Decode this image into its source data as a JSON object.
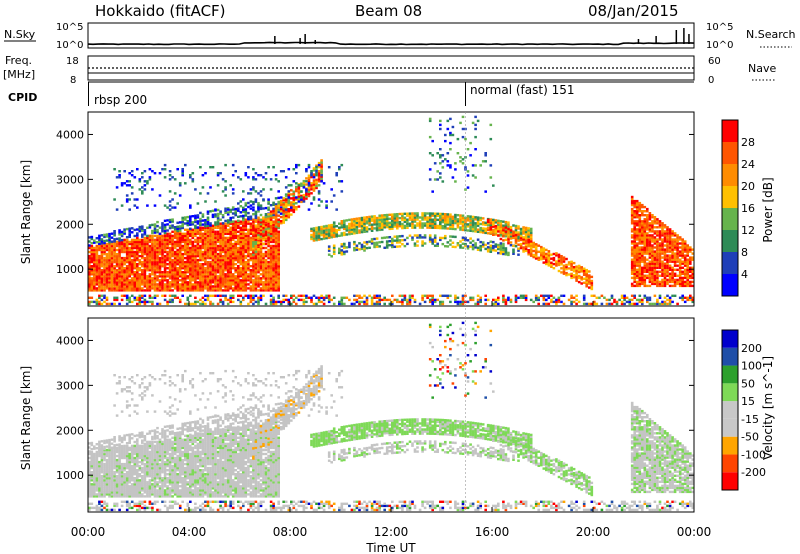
{
  "header": {
    "station": "Hokkaido (fitACF)",
    "beam": "Beam 08",
    "date": "08/Jan/2015"
  },
  "side_labels": {
    "nsky": "N.Sky",
    "freq_line1": "Freq.",
    "freq_line2": "[MHz]",
    "cpid": "CPID",
    "nsearch": "N.Search",
    "nave": "Nave"
  },
  "noise_panel": {
    "left_ticks": [
      "10^5",
      "10^0"
    ],
    "right_ticks": [
      "10^5",
      "10^0"
    ]
  },
  "freq_panel": {
    "left_ticks": [
      "18",
      "8"
    ],
    "right_ticks": [
      "60",
      "0"
    ]
  },
  "cpid_panel": {
    "segments": [
      {
        "label": "rbsp 200",
        "start_hour": 0
      },
      {
        "label": "normal (fast) 151",
        "start_hour": 15.1
      }
    ]
  },
  "colors": {
    "power_scale": [
      "#0000ff",
      "#1f3fb8",
      "#2e8b57",
      "#66b34d",
      "#ffc000",
      "#ff8c00",
      "#ff5500",
      "#ff0000"
    ],
    "velocity_scale": [
      "#ff0000",
      "#ff4500",
      "#ffa500",
      "#c8c8c8",
      "#c8c8c8",
      "#7ed957",
      "#2ca02c",
      "#1f4fa8",
      "#0000cc"
    ],
    "ground_scatter": "#c4c4c4"
  },
  "chart_data": [
    {
      "type": "heatmap",
      "name": "power",
      "ylabel": "Slant Range [km]",
      "xlabel": "Time UT",
      "x_ticks": [
        "00:00",
        "04:00",
        "08:00",
        "12:00",
        "16:00",
        "20:00",
        "00:00"
      ],
      "y_ticks": [
        "1000",
        "2000",
        "3000",
        "4000"
      ],
      "xlim_hours": [
        0,
        24
      ],
      "ylim_km": [
        180,
        4500
      ],
      "colorbar": {
        "label": "Power [dB]",
        "ticks": [
          "28",
          "24",
          "20",
          "16",
          "12",
          "8",
          "4"
        ],
        "range": [
          0,
          32
        ]
      }
    },
    {
      "type": "heatmap",
      "name": "velocity",
      "ylabel": "Slant Range [km]",
      "xlabel": "Time UT",
      "x_ticks": [
        "00:00",
        "04:00",
        "08:00",
        "12:00",
        "16:00",
        "20:00",
        "00:00"
      ],
      "y_ticks": [
        "1000",
        "2000",
        "3000",
        "4000"
      ],
      "xlim_hours": [
        0,
        24
      ],
      "ylim_km": [
        180,
        4500
      ],
      "colorbar": {
        "label": "Velocity [m s^-1]",
        "ticks": [
          "200",
          "100",
          "50",
          "15",
          "-15",
          "-50",
          "-100",
          "-200"
        ],
        "range": [
          -250,
          250
        ]
      }
    }
  ]
}
